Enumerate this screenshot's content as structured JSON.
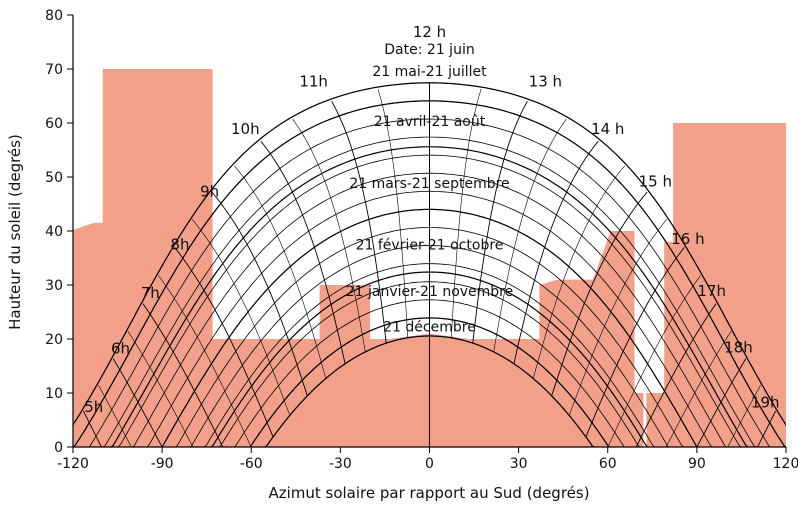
{
  "chart_data": {
    "type": "area",
    "xlabel": "Azimut solaire par rapport au Sud (degrés)",
    "ylabel": "Hauteur du soleil (degrés)",
    "xlim": [
      -120,
      120
    ],
    "ylim": [
      0,
      80
    ],
    "x_ticks": [
      "-120",
      "-90",
      "-60",
      "-30",
      "0",
      "30",
      "60",
      "90",
      "120"
    ],
    "y_ticks": [
      "0",
      "10",
      "20",
      "30",
      "40",
      "50",
      "60",
      "70",
      "80"
    ],
    "latitude": 46,
    "declinations": [
      23.44,
      20.1,
      11.6,
      0,
      -11.6,
      -20.1,
      -23.44
    ],
    "date_labels": [
      {
        "text": "Date: 21 juin",
        "x": 0,
        "y": 72.8
      },
      {
        "text": "21 mai-21 juillet",
        "x": 0,
        "y": 68.7
      },
      {
        "text": "21 avril-21 août",
        "x": 0,
        "y": 59.4
      },
      {
        "text": "21 mars-21 septembre",
        "x": 0,
        "y": 48.0
      },
      {
        "text": "21 février-21 octobre",
        "x": 0,
        "y": 36.6
      },
      {
        "text": "21 janvier-21 novembre",
        "x": 0,
        "y": 28.0
      },
      {
        "text": "21 décembre",
        "x": 0,
        "y": 21.4
      }
    ],
    "hour_labels": [
      {
        "text": "5h",
        "x": -113,
        "y": 6.5
      },
      {
        "text": "6h",
        "x": -104,
        "y": 17.3
      },
      {
        "text": "7h",
        "x": -94,
        "y": 27.6
      },
      {
        "text": "8h",
        "x": -84,
        "y": 36.6
      },
      {
        "text": "9h",
        "x": -74,
        "y": 46.4
      },
      {
        "text": "10h",
        "x": -62,
        "y": 58.0
      },
      {
        "text": "11h",
        "x": -39,
        "y": 66.8
      },
      {
        "text": "12 h",
        "x": 0,
        "y": 75.9
      },
      {
        "text": "13 h",
        "x": 39,
        "y": 66.8
      },
      {
        "text": "14 h",
        "x": 60,
        "y": 58.0
      },
      {
        "text": "15 h",
        "x": 76,
        "y": 48.2
      },
      {
        "text": "16 h",
        "x": 87,
        "y": 37.6
      },
      {
        "text": "17h",
        "x": 95,
        "y": 28.0
      },
      {
        "text": "18h",
        "x": 104,
        "y": 17.5
      },
      {
        "text": "19h",
        "x": 113,
        "y": 7.3
      }
    ],
    "obstruction_color": "#f3a08a",
    "obstructions": [
      {
        "name": "left-obstruction",
        "points": [
          [
            -121,
            0
          ],
          [
            -121,
            40
          ],
          [
            -113,
            41.5
          ],
          [
            -110,
            41.5
          ],
          [
            -110,
            70
          ],
          [
            -73,
            70
          ],
          [
            -73,
            20
          ],
          [
            -37,
            20
          ],
          [
            -37,
            30
          ],
          [
            -20,
            30
          ],
          [
            -20,
            20
          ],
          [
            37,
            20
          ],
          [
            37,
            30
          ],
          [
            43,
            31
          ],
          [
            55,
            31
          ],
          [
            61,
            40
          ],
          [
            69,
            40
          ],
          [
            69,
            10
          ],
          [
            72,
            10
          ],
          [
            72,
            0
          ]
        ]
      },
      {
        "name": "right-obstruction",
        "points": [
          [
            73,
            0
          ],
          [
            73,
            10
          ],
          [
            79,
            10
          ],
          [
            79,
            38
          ],
          [
            82,
            38
          ],
          [
            82,
            60
          ],
          [
            121,
            60
          ],
          [
            121,
            0
          ]
        ]
      },
      {
        "name": "winter-mound",
        "points": [
          [
            -52,
            0
          ],
          [
            -40,
            12
          ],
          [
            -30,
            17
          ],
          [
            -20,
            19.5
          ],
          [
            0,
            21
          ],
          [
            20,
            19.5
          ],
          [
            30,
            17
          ],
          [
            40,
            12
          ],
          [
            52,
            0
          ]
        ]
      }
    ]
  }
}
